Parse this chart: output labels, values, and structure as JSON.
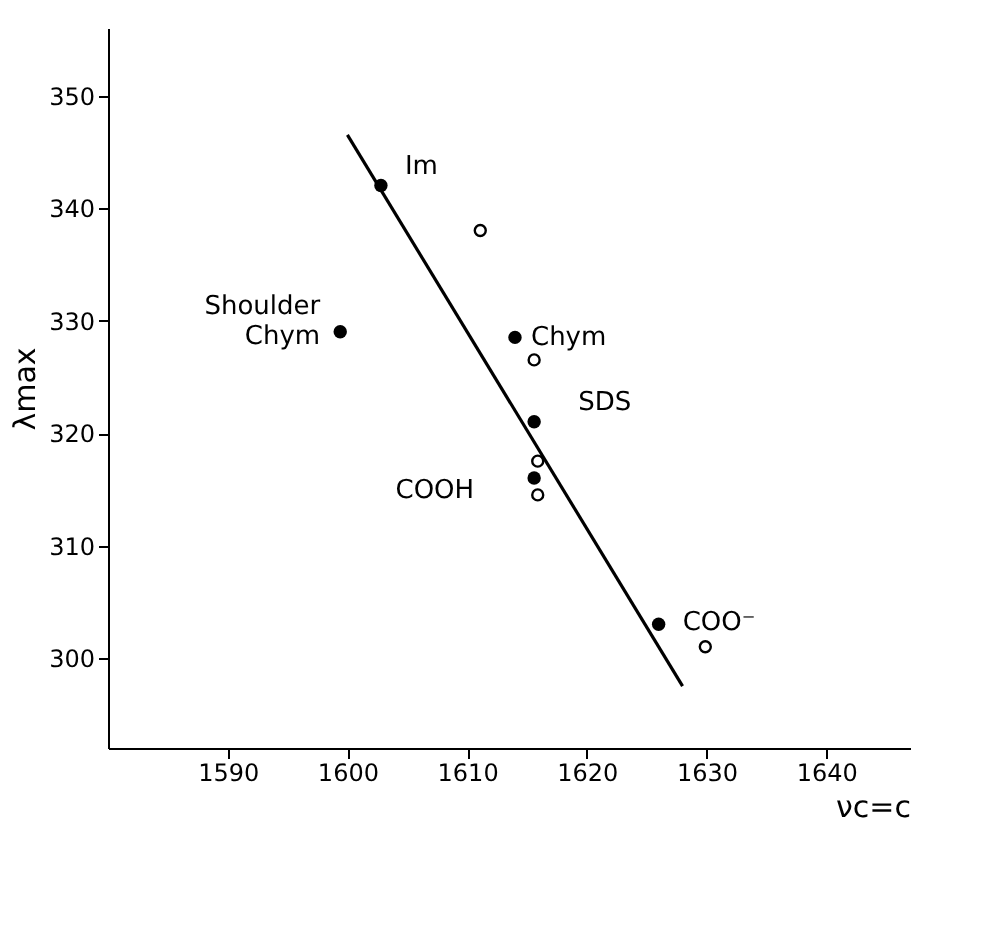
{
  "chart_data": {
    "type": "scatter",
    "xlabel": "νc=c",
    "ylabel": "λmax",
    "xlim": [
      1580,
      1647
    ],
    "ylim": [
      292,
      356
    ],
    "xticks": [
      1590,
      1600,
      1610,
      1620,
      1630,
      1640
    ],
    "yticks": [
      300,
      310,
      320,
      330,
      340,
      350
    ],
    "grid": false,
    "series": [
      {
        "color": "#000000",
        "marker": "circle",
        "x": [
          1602.8,
          1599.4,
          1614.0,
          1615.6,
          1615.6,
          1626.0
        ],
        "values": [
          342,
          329,
          328.5,
          321,
          316,
          303
        ]
      },
      {
        "color": "#000000",
        "marker": "circle",
        "x": [
          1611.1,
          1615.6,
          1615.9,
          1615.9,
          1629.9
        ],
        "values": [
          338,
          326.5,
          317.5,
          314.5,
          301
        ]
      },
      {
        "type": "line",
        "color": "#000000",
        "marker": "none",
        "line_style": "solid",
        "x": [
          1600,
          1628
        ],
        "values": [
          346.5,
          297.5
        ]
      }
    ],
    "annotations": [
      {
        "text": "Im",
        "x": 1602.8,
        "y": 342
      },
      {
        "text": "Shoulder\nChym",
        "x": 1599.4,
        "y": 329
      },
      {
        "text": "Chym",
        "x": 1614.0,
        "y": 328.5
      },
      {
        "text": "SDS",
        "x": 1615.6,
        "y": 321
      },
      {
        "text": "COOH",
        "x": 1615.6,
        "y": 316
      },
      {
        "text": "COO⁻",
        "x": 1626.0,
        "y": 303
      }
    ]
  }
}
